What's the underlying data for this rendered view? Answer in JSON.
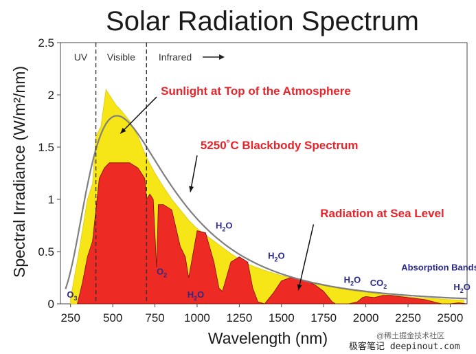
{
  "chart_data": {
    "type": "area",
    "title": "Solar Radiation Spectrum",
    "xlabel": "Wavelength (nm)",
    "ylabel": "Spectral Irradiance (W/m²/nm)",
    "xlim": [
      190,
      2600
    ],
    "ylim": [
      0,
      2.5
    ],
    "xticks": [
      250,
      500,
      750,
      1000,
      1250,
      1500,
      1750,
      2000,
      2250,
      2500
    ],
    "yticks": [
      0,
      0.5,
      1,
      1.5,
      2,
      2.5
    ],
    "ytick_labels": [
      "0",
      "0.5",
      "1",
      "1.5",
      "2",
      "2.5"
    ],
    "regions": [
      {
        "label": "UV",
        "x": 310
      },
      {
        "label": "Visible",
        "x": 550
      },
      {
        "label": "Infrared",
        "x": 870
      }
    ],
    "boundaries": [
      400,
      700
    ],
    "colors": {
      "top_of_atmosphere": "#f7e617",
      "sea_level": "#ee2a24",
      "blackbody": "#7f7f7f",
      "annotation": "#e8232a",
      "absorption": "#2a2a8a"
    },
    "series": [
      {
        "name": "Sunlight at Top of the Atmosphere",
        "x": [
          250,
          300,
          350,
          380,
          400,
          430,
          460,
          480,
          500,
          520,
          550,
          600,
          650,
          700,
          750,
          800,
          850,
          900,
          950,
          1000,
          1100,
          1200,
          1300,
          1400,
          1500,
          1600,
          1700,
          1800,
          1900,
          2000,
          2100,
          2200,
          2300,
          2400,
          2500,
          2580
        ],
        "y": [
          0.05,
          0.5,
          1.0,
          1.15,
          1.6,
          1.7,
          2.05,
          2.0,
          1.95,
          1.9,
          1.85,
          1.75,
          1.6,
          1.4,
          1.25,
          1.12,
          1.0,
          0.9,
          0.8,
          0.72,
          0.6,
          0.48,
          0.38,
          0.32,
          0.27,
          0.23,
          0.19,
          0.16,
          0.13,
          0.11,
          0.09,
          0.075,
          0.06,
          0.05,
          0.04,
          0.035
        ]
      },
      {
        "name": "Radiation at Sea Level",
        "x": [
          290,
          320,
          350,
          380,
          400,
          420,
          450,
          480,
          500,
          550,
          600,
          650,
          690,
          700,
          720,
          740,
          760,
          770,
          800,
          850,
          900,
          930,
          950,
          1000,
          1050,
          1100,
          1130,
          1150,
          1200,
          1250,
          1300,
          1330,
          1360,
          1400,
          1450,
          1500,
          1550,
          1600,
          1650,
          1700,
          1750,
          1800,
          1820,
          1850,
          1900,
          1950,
          1980,
          2000,
          2050,
          2100,
          2150,
          2200,
          2250,
          2300,
          2350,
          2400,
          2450,
          2500,
          2550,
          2600
        ],
        "y": [
          0.0,
          0.2,
          0.45,
          0.6,
          0.9,
          1.2,
          1.3,
          1.35,
          1.35,
          1.35,
          1.35,
          1.3,
          1.2,
          1.0,
          1.05,
          1.0,
          0.35,
          0.95,
          0.95,
          0.9,
          0.55,
          0.45,
          0.25,
          0.7,
          0.68,
          0.4,
          0.15,
          0.12,
          0.4,
          0.45,
          0.4,
          0.15,
          0.02,
          0.0,
          0.1,
          0.22,
          0.25,
          0.24,
          0.22,
          0.18,
          0.12,
          0.02,
          0.0,
          0.0,
          0.0,
          0.02,
          0.06,
          0.07,
          0.06,
          0.08,
          0.08,
          0.07,
          0.06,
          0.05,
          0.04,
          0.02,
          0.0,
          0.0,
          0.01,
          0.0
        ]
      },
      {
        "name": "5250˚C Blackbody Spectrum",
        "temperature_c": 5250
      }
    ],
    "annotations": [
      {
        "text": "Sunlight at Top of the Atmosphere",
        "style": "red",
        "x": 785,
        "y": 2.0
      },
      {
        "text": "5250˚C Blackbody Spectrum",
        "style": "red",
        "x": 1020,
        "y": 1.48
      },
      {
        "text": "Radiation at Sea Level",
        "style": "red",
        "x": 1730,
        "y": 0.83
      },
      {
        "text": "O3",
        "style": "blue",
        "x": 228,
        "y": 0.06
      },
      {
        "text": "O2",
        "style": "blue",
        "x": 760,
        "y": 0.28
      },
      {
        "text": "H2O",
        "style": "blue",
        "x": 942,
        "y": 0.06
      },
      {
        "text": "H2O",
        "style": "blue",
        "x": 1110,
        "y": 0.72
      },
      {
        "text": "H2O",
        "style": "blue",
        "x": 1420,
        "y": 0.43
      },
      {
        "text": "H2O",
        "style": "blue",
        "x": 1870,
        "y": 0.2
      },
      {
        "text": "Absorption Bands",
        "style": "blue",
        "x": 2210,
        "y": 0.32
      },
      {
        "text": "CO2",
        "style": "blue",
        "x": 2025,
        "y": 0.17
      },
      {
        "text": "H2O",
        "style": "blue",
        "x": 2520,
        "y": 0.13
      }
    ],
    "watermark_lines": [
      "@稀土掘金技术社区",
      "极客笔记 deepinout.com"
    ]
  }
}
